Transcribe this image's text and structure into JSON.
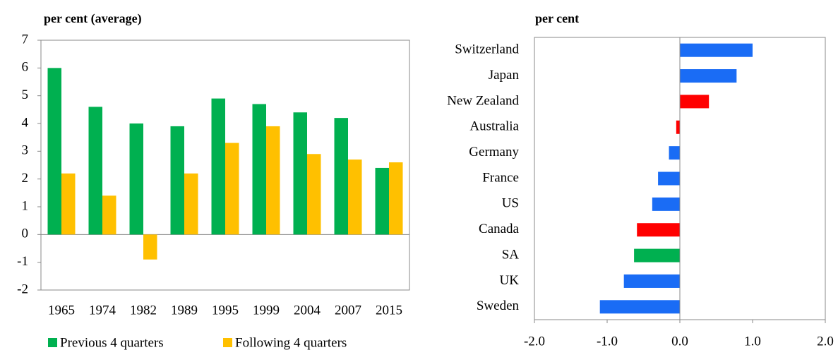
{
  "chart_data": [
    {
      "type": "bar",
      "title": "per cent (average)",
      "categories": [
        "1965",
        "1974",
        "1982",
        "1989",
        "1995",
        "1999",
        "2004",
        "2007",
        "2015"
      ],
      "series": [
        {
          "name": "Previous 4 quarters",
          "color": "#00b050",
          "values": [
            6.0,
            4.6,
            4.0,
            3.9,
            4.9,
            4.7,
            4.4,
            4.2,
            2.4
          ]
        },
        {
          "name": "Following 4 quarters",
          "color": "#ffc000",
          "values": [
            2.2,
            1.4,
            -0.9,
            2.2,
            3.3,
            3.9,
            2.9,
            2.7,
            2.6
          ]
        }
      ],
      "ylim": [
        -2,
        7
      ],
      "yticks": [
        -2,
        -1,
        0,
        1,
        2,
        3,
        4,
        5,
        6,
        7
      ],
      "grid": false,
      "legend": "bottom"
    },
    {
      "type": "barh",
      "title": "per cent",
      "categories": [
        "Switzerland",
        "Japan",
        "New Zealand",
        "Australia",
        "Germany",
        "France",
        "US",
        "Canada",
        "SA",
        "UK",
        "Sweden"
      ],
      "values": [
        1.0,
        0.78,
        0.4,
        -0.05,
        -0.15,
        -0.3,
        -0.38,
        -0.59,
        -0.63,
        -0.77,
        -1.1
      ],
      "colors": [
        "#1a6cf5",
        "#1a6cf5",
        "#ff0000",
        "#ff0000",
        "#1a6cf5",
        "#1a6cf5",
        "#1a6cf5",
        "#ff0000",
        "#00b050",
        "#1a6cf5",
        "#1a6cf5"
      ],
      "xlim": [
        -2,
        2
      ],
      "xticks": [
        {
          "value": -2,
          "label": "-2.0"
        },
        {
          "value": -1,
          "label": "-1.0"
        },
        {
          "value": 0,
          "label": "0.0"
        },
        {
          "value": 1,
          "label": "1.0"
        },
        {
          "value": 2,
          "label": "2.0"
        }
      ],
      "grid": false
    }
  ]
}
